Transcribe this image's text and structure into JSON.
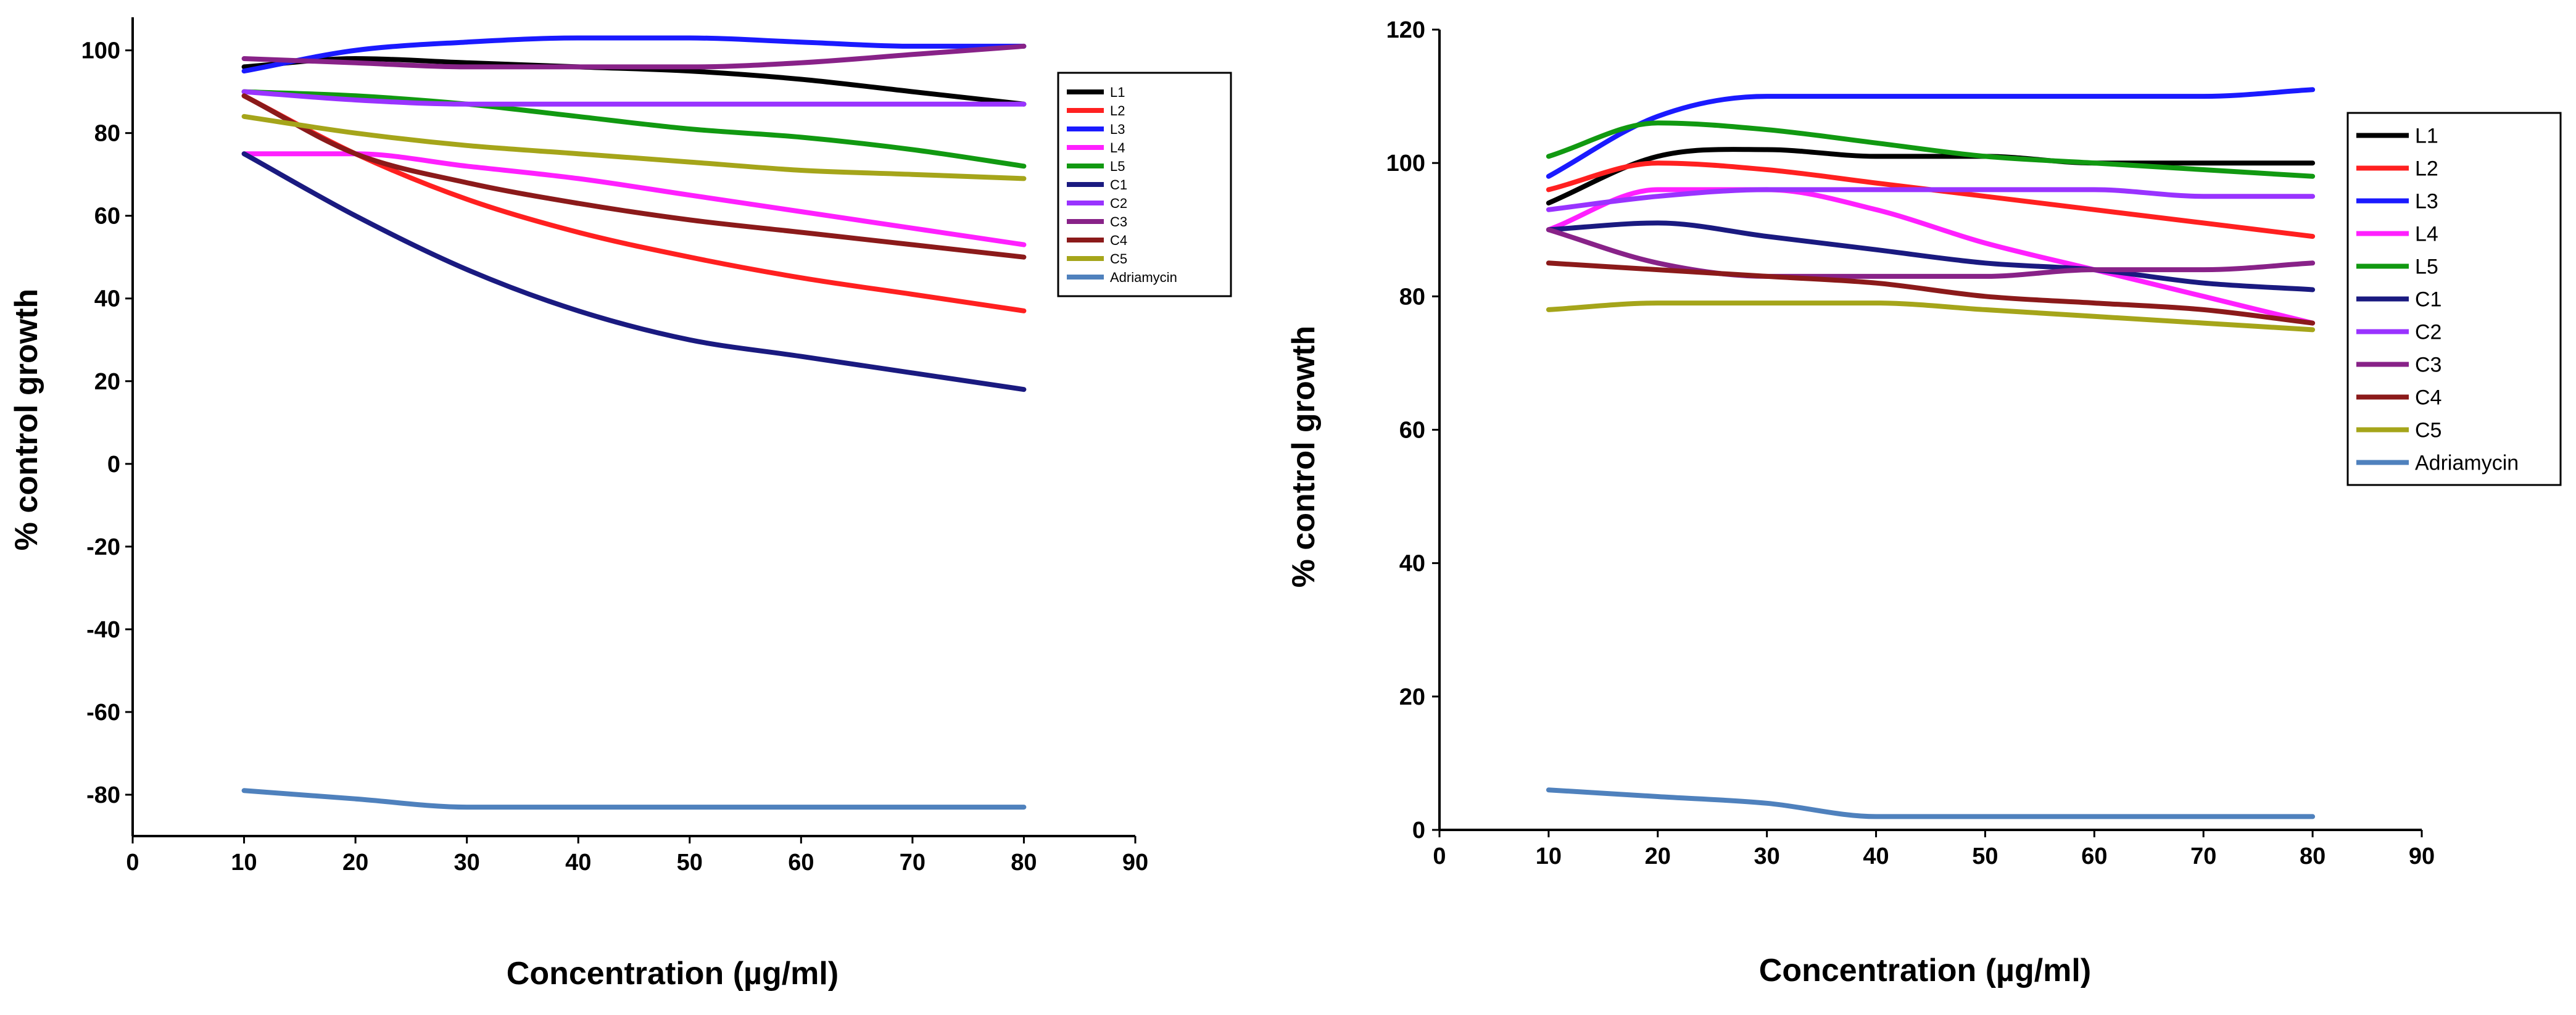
{
  "chart_data": [
    {
      "type": "line",
      "xlabel": "Concentration  (µg/ml)",
      "ylabel": "% control growth",
      "xlim": [
        0,
        90
      ],
      "ylim": [
        -90,
        108
      ],
      "xticks": [
        "0",
        "10",
        "20",
        "30",
        "40",
        "50",
        "60",
        "70",
        "80",
        "90"
      ],
      "yticks": [
        "100",
        "80",
        "60",
        "40",
        "20",
        "0",
        "-20",
        "-40",
        "-60",
        "-80"
      ],
      "legend_position": "top-right",
      "grid": false,
      "series": [
        {
          "name": "L1",
          "color": "#000000",
          "x": [
            10,
            20,
            30,
            40,
            50,
            60,
            70,
            80
          ],
          "y": [
            96,
            98,
            97,
            96,
            95,
            93,
            90,
            87
          ]
        },
        {
          "name": "L2",
          "color": "#ff2020",
          "x": [
            10,
            20,
            30,
            40,
            50,
            60,
            70,
            80
          ],
          "y": [
            89,
            75,
            64,
            56,
            50,
            45,
            41,
            37
          ]
        },
        {
          "name": "L3",
          "color": "#1a1aff",
          "x": [
            10,
            20,
            30,
            40,
            50,
            60,
            70,
            80
          ],
          "y": [
            95,
            100,
            102,
            103,
            103,
            102,
            101,
            101
          ]
        },
        {
          "name": "L4",
          "color": "#ff20ff",
          "x": [
            10,
            20,
            30,
            40,
            50,
            60,
            70,
            80
          ],
          "y": [
            75,
            75,
            72,
            69,
            65,
            61,
            57,
            53
          ]
        },
        {
          "name": "L5",
          "color": "#119911",
          "x": [
            10,
            20,
            30,
            40,
            50,
            60,
            70,
            80
          ],
          "y": [
            90,
            89,
            87,
            84,
            81,
            79,
            76,
            72
          ]
        },
        {
          "name": "C1",
          "color": "#1a1a80",
          "x": [
            10,
            20,
            30,
            40,
            50,
            60,
            70,
            80
          ],
          "y": [
            75,
            60,
            47,
            37,
            30,
            26,
            22,
            18
          ]
        },
        {
          "name": "C2",
          "color": "#9933ff",
          "x": [
            10,
            20,
            30,
            40,
            50,
            60,
            70,
            80
          ],
          "y": [
            90,
            88,
            87,
            87,
            87,
            87,
            87,
            87
          ]
        },
        {
          "name": "C3",
          "color": "#882288",
          "x": [
            10,
            20,
            30,
            40,
            50,
            60,
            70,
            80
          ],
          "y": [
            98,
            97,
            96,
            96,
            96,
            97,
            99,
            101
          ]
        },
        {
          "name": "C4",
          "color": "#8b1a1a",
          "x": [
            10,
            20,
            30,
            40,
            50,
            60,
            70,
            80
          ],
          "y": [
            89,
            75,
            68,
            63,
            59,
            56,
            53,
            50
          ]
        },
        {
          "name": "C5",
          "color": "#a5a51a",
          "x": [
            10,
            20,
            30,
            40,
            50,
            60,
            70,
            80
          ],
          "y": [
            84,
            80,
            77,
            75,
            73,
            71,
            70,
            69
          ]
        },
        {
          "name": "Adriamycin",
          "color": "#4f81bd",
          "x": [
            10,
            20,
            30,
            40,
            50,
            60,
            70,
            80
          ],
          "y": [
            -79,
            -81,
            -83,
            -83,
            -83,
            -83,
            -83,
            -83
          ]
        }
      ]
    },
    {
      "type": "line",
      "xlabel": "Concentration  (µg/ml)",
      "ylabel": "% control growth",
      "xlim": [
        0,
        90
      ],
      "ylim": [
        0,
        120
      ],
      "xticks": [
        "0",
        "10",
        "20",
        "30",
        "40",
        "50",
        "60",
        "70",
        "80",
        "90"
      ],
      "yticks": [
        "120",
        "100",
        "80",
        "60",
        "40",
        "20",
        "0"
      ],
      "legend_position": "top-right",
      "grid": false,
      "series": [
        {
          "name": "L1",
          "color": "#000000",
          "x": [
            10,
            20,
            30,
            40,
            50,
            60,
            70,
            80
          ],
          "y": [
            94,
            101,
            102,
            101,
            101,
            100,
            100,
            100
          ]
        },
        {
          "name": "L2",
          "color": "#ff2020",
          "x": [
            10,
            20,
            30,
            40,
            50,
            60,
            70,
            80
          ],
          "y": [
            96,
            100,
            99,
            97,
            95,
            93,
            91,
            89
          ]
        },
        {
          "name": "L3",
          "color": "#1a1aff",
          "x": [
            10,
            20,
            30,
            40,
            50,
            60,
            70,
            80
          ],
          "y": [
            98,
            107,
            110,
            110,
            110,
            110,
            110,
            111
          ]
        },
        {
          "name": "L4",
          "color": "#ff20ff",
          "x": [
            10,
            20,
            30,
            40,
            50,
            60,
            70,
            80
          ],
          "y": [
            90,
            96,
            96,
            93,
            88,
            84,
            80,
            76
          ]
        },
        {
          "name": "L5",
          "color": "#119911",
          "x": [
            10,
            20,
            30,
            40,
            50,
            60,
            70,
            80
          ],
          "y": [
            101,
            106,
            105,
            103,
            101,
            100,
            99,
            98
          ]
        },
        {
          "name": "C1",
          "color": "#1a1a80",
          "x": [
            10,
            20,
            30,
            40,
            50,
            60,
            70,
            80
          ],
          "y": [
            90,
            91,
            89,
            87,
            85,
            84,
            82,
            81
          ]
        },
        {
          "name": "C2",
          "color": "#9933ff",
          "x": [
            10,
            20,
            30,
            40,
            50,
            60,
            70,
            80
          ],
          "y": [
            93,
            95,
            96,
            96,
            96,
            96,
            95,
            95
          ]
        },
        {
          "name": "C3",
          "color": "#882288",
          "x": [
            10,
            20,
            30,
            40,
            50,
            60,
            70,
            80
          ],
          "y": [
            90,
            85,
            83,
            83,
            83,
            84,
            84,
            85
          ]
        },
        {
          "name": "C4",
          "color": "#8b1a1a",
          "x": [
            10,
            20,
            30,
            40,
            50,
            60,
            70,
            80
          ],
          "y": [
            85,
            84,
            83,
            82,
            80,
            79,
            78,
            76
          ]
        },
        {
          "name": "C5",
          "color": "#a5a51a",
          "x": [
            10,
            20,
            30,
            40,
            50,
            60,
            70,
            80
          ],
          "y": [
            78,
            79,
            79,
            79,
            78,
            77,
            76,
            75
          ]
        },
        {
          "name": "Adriamycin",
          "color": "#4f81bd",
          "x": [
            10,
            20,
            30,
            40,
            50,
            60,
            70,
            80
          ],
          "y": [
            6,
            5,
            4,
            2,
            2,
            2,
            2,
            2
          ]
        }
      ]
    }
  ]
}
